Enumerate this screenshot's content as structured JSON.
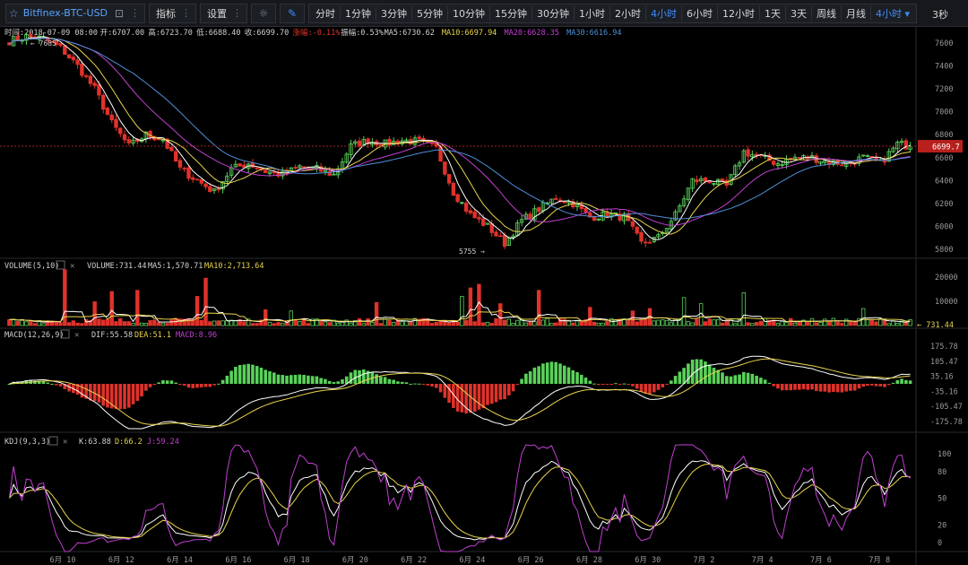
{
  "toolbar": {
    "symbol": "Bitfinex-BTC-USD",
    "indicator_label": "指标",
    "settings_label": "设置",
    "intervals": [
      "分时",
      "1分钟",
      "3分钟",
      "5分钟",
      "10分钟",
      "15分钟",
      "30分钟",
      "1小时",
      "2小时",
      "4小时",
      "6小时",
      "12小时",
      "1天",
      "3天",
      "周线",
      "月线"
    ],
    "active_interval": "4小时",
    "interval_dropdown": "4小时",
    "refresh": "3秒"
  },
  "info_bar": {
    "time": "时间:2018-07-09 08:00",
    "open": "开:6707.00",
    "high": "高:6723.70",
    "low": "低:6688.40",
    "close": "收:6699.70",
    "change": "涨幅:-0.11%",
    "amplitude": "振幅:0.53%",
    "ma5": "MA5:6730.62",
    "ma10": "MA10:6697.94",
    "ma20": "MA20:6628.35",
    "ma30": "MA30:6616.94"
  },
  "volume_bar": {
    "title": "VOLUME(5,10)",
    "volume": "VOLUME:731.44",
    "ma5": "MA5:1,570.71",
    "ma10": "MA10:2,713.64"
  },
  "macd_bar": {
    "title": "MACD(12,26,9)",
    "dif": "DIF:55.58",
    "dea": "DEA:51.1",
    "macd": "MACD:8.96"
  },
  "kdj_bar": {
    "title": "KDJ(9,3,3)",
    "k": "K:63.88",
    "d": "D:66.2",
    "j": "J:59.24"
  },
  "colors": {
    "up": "#5ad25a",
    "down": "#e0322a",
    "ma5": "#ffffff",
    "ma10": "#e8d44d",
    "ma20": "#c040d0",
    "ma30": "#4f8fd8",
    "price_tag": "#b7201c",
    "active": "#3f8cff"
  },
  "chart_data": {
    "type": "candlestick",
    "x_labels": [
      "6月 10",
      "6月 12",
      "6月 14",
      "6月 16",
      "6月 18",
      "6月 20",
      "6月 22",
      "6月 24",
      "6月 26",
      "6月 28",
      "6月 30",
      "7月 2",
      "7月 4",
      "7月 6",
      "7月 8"
    ],
    "price_axis": {
      "ticks": [
        5800,
        6000,
        6200,
        6400,
        6600,
        6800,
        7000,
        7200,
        7400,
        7600
      ],
      "ylim": [
        5720,
        7680
      ]
    },
    "current_price": "6699.7",
    "high_marker": "← 7685",
    "low_marker": "5755 →",
    "volume_axis": {
      "ticks": [
        "20000",
        "10000"
      ],
      "max": 24000
    },
    "volume_current": "← 731.44",
    "macd_axis": {
      "ticks": [
        "175.78",
        "105.47",
        "35.16",
        "-35.16",
        "-105.47",
        "-175.78"
      ],
      "ylim": [
        -210,
        210
      ]
    },
    "kdj_axis": {
      "ticks": [
        "100",
        "80",
        "50",
        "20",
        "0"
      ],
      "ylim": [
        -10,
        110
      ]
    },
    "close_anchors": [
      [
        0,
        7620
      ],
      [
        4,
        7660
      ],
      [
        8,
        7640
      ],
      [
        12,
        7560
      ],
      [
        16,
        7400
      ],
      [
        20,
        7200
      ],
      [
        24,
        6900
      ],
      [
        28,
        6700
      ],
      [
        32,
        6800
      ],
      [
        36,
        6760
      ],
      [
        40,
        6500
      ],
      [
        44,
        6400
      ],
      [
        48,
        6300
      ],
      [
        52,
        6500
      ],
      [
        56,
        6550
      ],
      [
        60,
        6480
      ],
      [
        64,
        6450
      ],
      [
        68,
        6520
      ],
      [
        72,
        6500
      ],
      [
        76,
        6450
      ],
      [
        80,
        6700
      ],
      [
        84,
        6750
      ],
      [
        88,
        6720
      ],
      [
        92,
        6750
      ],
      [
        96,
        6740
      ],
      [
        100,
        6680
      ],
      [
        104,
        6300
      ],
      [
        108,
        6100
      ],
      [
        112,
        6000
      ],
      [
        116,
        5850
      ],
      [
        120,
        6050
      ],
      [
        124,
        6150
      ],
      [
        128,
        6250
      ],
      [
        132,
        6200
      ],
      [
        136,
        6080
      ],
      [
        140,
        6100
      ],
      [
        144,
        6080
      ],
      [
        148,
        5850
      ],
      [
        152,
        5900
      ],
      [
        156,
        6100
      ],
      [
        160,
        6400
      ],
      [
        164,
        6400
      ],
      [
        168,
        6350
      ],
      [
        172,
        6650
      ],
      [
        176,
        6600
      ],
      [
        180,
        6550
      ],
      [
        184,
        6600
      ],
      [
        188,
        6600
      ],
      [
        192,
        6560
      ],
      [
        196,
        6550
      ],
      [
        200,
        6600
      ],
      [
        204,
        6550
      ],
      [
        208,
        6720
      ],
      [
        211,
        6700
      ]
    ],
    "volume_spikes": [
      [
        13,
        23000
      ],
      [
        20,
        9800
      ],
      [
        24,
        14000
      ],
      [
        30,
        14500
      ],
      [
        44,
        12000
      ],
      [
        46,
        19500
      ],
      [
        60,
        6500
      ],
      [
        66,
        6000
      ],
      [
        86,
        9500
      ],
      [
        106,
        12000
      ],
      [
        108,
        15500
      ],
      [
        110,
        17000
      ],
      [
        115,
        9000
      ],
      [
        124,
        14500
      ],
      [
        136,
        7500
      ],
      [
        146,
        6000
      ],
      [
        150,
        7000
      ],
      [
        158,
        11500
      ],
      [
        162,
        9000
      ],
      [
        172,
        13500
      ],
      [
        200,
        7000
      ]
    ]
  }
}
